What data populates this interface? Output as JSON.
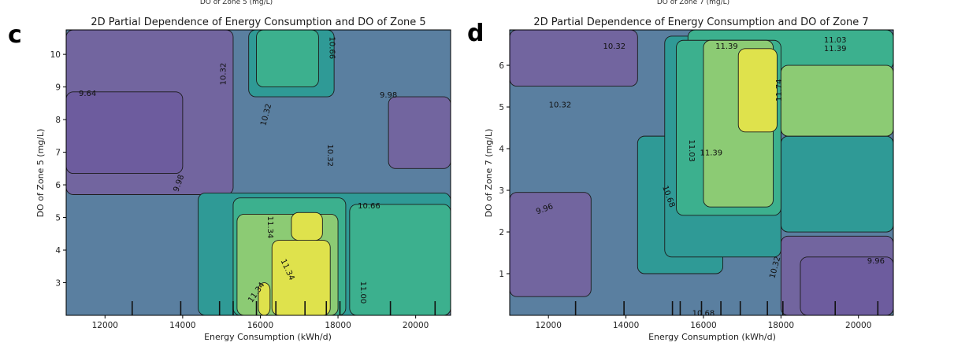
{
  "colors": {
    "viridis": [
      "#482878",
      "#3e4a89",
      "#31688e",
      "#26828e",
      "#1f9e89",
      "#35b779",
      "#6ece58",
      "#b5de2b",
      "#fde725"
    ],
    "level_fill": {
      "9.64": "#6d5c9e",
      "9.96": "#72659f",
      "9.98": "#72659f",
      "10.32": "#5a7fa0",
      "10.66": "#2f9a96",
      "11.00": "#3cb08e",
      "11.03": "#3cb08e",
      "11.34": "#8ccb74",
      "11.39": "#8ccb74",
      "11.74": "#dfe24c"
    }
  },
  "chart_data": [
    {
      "panel": "c",
      "type": "contour",
      "title": "2D Partial Dependence of Energy Consumption and DO of Zone 5",
      "top_clipped_text": "DO of Zone 5  (mg/L)",
      "xlabel": "Energy Consumption  (kWh/d)",
      "ylabel": "DO of Zone 5   (mg/L)",
      "xlim": [
        11000,
        20900
      ],
      "ylim": [
        2.0,
        10.75
      ],
      "xticks": [
        12000,
        14000,
        16000,
        18000,
        20000
      ],
      "yticks": [
        3,
        4,
        5,
        6,
        7,
        8,
        9,
        10
      ],
      "background_level": "10.32",
      "regions": [
        {
          "x0": 11000,
          "x1": 15300,
          "y0": 5.7,
          "y1": 10.75,
          "level": "9.98"
        },
        {
          "x0": 11000,
          "x1": 14000,
          "y0": 6.35,
          "y1": 8.85,
          "level": "9.64"
        },
        {
          "x0": 19300,
          "x1": 20900,
          "y0": 6.5,
          "y1": 8.7,
          "level": "9.98"
        },
        {
          "x0": 15700,
          "x1": 17900,
          "y0": 8.7,
          "y1": 10.75,
          "level": "10.66"
        },
        {
          "x0": 15900,
          "x1": 17500,
          "y0": 9.0,
          "y1": 10.75,
          "level": "11.00"
        },
        {
          "x0": 14400,
          "x1": 20900,
          "y0": 2.0,
          "y1": 5.75,
          "level": "10.66"
        },
        {
          "x0": 18300,
          "x1": 20900,
          "y0": 2.0,
          "y1": 5.4,
          "level": "11.00"
        },
        {
          "x0": 15300,
          "x1": 18200,
          "y0": 2.0,
          "y1": 5.6,
          "level": "11.00"
        },
        {
          "x0": 15400,
          "x1": 18000,
          "y0": 2.0,
          "y1": 5.1,
          "level": "11.34"
        },
        {
          "x0": 16300,
          "x1": 17800,
          "y0": 2.0,
          "y1": 4.3,
          "level": "11.74"
        },
        {
          "x0": 16800,
          "x1": 17600,
          "y0": 4.3,
          "y1": 5.15,
          "level": "11.74"
        },
        {
          "x0": 15950,
          "x1": 16250,
          "y0": 2.0,
          "y1": 3.0,
          "level": "11.74"
        }
      ],
      "contour_labels": [
        {
          "text": "9.64",
          "x": 11550,
          "y": 8.8,
          "rot": 0
        },
        {
          "text": "10.32",
          "x": 15050,
          "y": 9.4,
          "rot": -90
        },
        {
          "text": "10.66",
          "x": 17850,
          "y": 10.2,
          "rot": 90
        },
        {
          "text": "10.32",
          "x": 16150,
          "y": 8.15,
          "rot": -75
        },
        {
          "text": "9.98",
          "x": 19300,
          "y": 8.75,
          "rot": 0
        },
        {
          "text": "10.32",
          "x": 17800,
          "y": 6.9,
          "rot": 90
        },
        {
          "text": "9.98",
          "x": 13900,
          "y": 6.05,
          "rot": -70
        },
        {
          "text": "10.66",
          "x": 18800,
          "y": 5.35,
          "rot": 0
        },
        {
          "text": "11.34",
          "x": 16250,
          "y": 4.7,
          "rot": 90
        },
        {
          "text": "11.34",
          "x": 16700,
          "y": 3.4,
          "rot": 65
        },
        {
          "text": "11.34",
          "x": 15900,
          "y": 2.7,
          "rot": -55
        },
        {
          "text": "11.00",
          "x": 18650,
          "y": 2.7,
          "rot": 90
        }
      ],
      "rug_x": [
        12700,
        13950,
        14950,
        15300,
        15900,
        16400,
        17150,
        17700,
        18050,
        19350,
        20500
      ]
    },
    {
      "panel": "d",
      "type": "contour",
      "title": "2D Partial Dependence of Energy Consumption and DO of Zone 7",
      "top_clipped_text": "DO of Zone 7 (mg/L)",
      "xlabel": "Energy Consumption  (kWh/d)",
      "ylabel": "DO of Zone 7   (mg/L)",
      "xlim": [
        11000,
        20900
      ],
      "ylim": [
        0.0,
        6.85
      ],
      "xticks": [
        12000,
        14000,
        16000,
        18000,
        20000
      ],
      "yticks": [
        1,
        2,
        3,
        4,
        5,
        6
      ],
      "background_level": "10.32",
      "regions": [
        {
          "x0": 11000,
          "x1": 14300,
          "y0": 5.5,
          "y1": 6.85,
          "level": "9.96"
        },
        {
          "x0": 11000,
          "x1": 13100,
          "y0": 0.45,
          "y1": 2.95,
          "level": "9.96"
        },
        {
          "x0": 18000,
          "x1": 20900,
          "y0": 0.0,
          "y1": 1.9,
          "level": "9.96"
        },
        {
          "x0": 18500,
          "x1": 20900,
          "y0": 0.0,
          "y1": 1.4,
          "level": "9.64"
        },
        {
          "x0": 14300,
          "x1": 16500,
          "y0": 1.0,
          "y1": 4.3,
          "level": "10.66"
        },
        {
          "x0": 15000,
          "x1": 18000,
          "y0": 1.4,
          "y1": 6.7,
          "level": "10.66"
        },
        {
          "x0": 18000,
          "x1": 20900,
          "y0": 2.0,
          "y1": 4.3,
          "level": "10.66"
        },
        {
          "x0": 15600,
          "x1": 20900,
          "y0": 5.9,
          "y1": 6.85,
          "level": "11.03"
        },
        {
          "x0": 15300,
          "x1": 18000,
          "y0": 2.4,
          "y1": 6.6,
          "level": "11.03"
        },
        {
          "x0": 16000,
          "x1": 17800,
          "y0": 2.6,
          "y1": 6.6,
          "level": "11.39"
        },
        {
          "x0": 18000,
          "x1": 20900,
          "y0": 4.3,
          "y1": 6.0,
          "level": "11.39"
        },
        {
          "x0": 16900,
          "x1": 17900,
          "y0": 4.4,
          "y1": 6.4,
          "level": "11.74"
        }
      ],
      "contour_labels": [
        {
          "text": "10.32",
          "x": 13700,
          "y": 6.45,
          "rot": 0
        },
        {
          "text": "11.39",
          "x": 16600,
          "y": 6.45,
          "rot": 0
        },
        {
          "text": "11.03",
          "x": 19400,
          "y": 6.6,
          "rot": 0
        },
        {
          "text": "11.39",
          "x": 19400,
          "y": 6.4,
          "rot": 0
        },
        {
          "text": "10.32",
          "x": 12300,
          "y": 5.05,
          "rot": 0
        },
        {
          "text": "11.74",
          "x": 17950,
          "y": 5.4,
          "rot": -90
        },
        {
          "text": "11.03",
          "x": 15700,
          "y": 3.95,
          "rot": 90
        },
        {
          "text": "11.39",
          "x": 16200,
          "y": 3.9,
          "rot": 0
        },
        {
          "text": "10.68",
          "x": 15100,
          "y": 2.85,
          "rot": 70
        },
        {
          "text": "9.96",
          "x": 11900,
          "y": 2.55,
          "rot": -20
        },
        {
          "text": "10.32",
          "x": 17850,
          "y": 1.15,
          "rot": -75
        },
        {
          "text": "9.96",
          "x": 20450,
          "y": 1.3,
          "rot": 0
        },
        {
          "text": "10.68",
          "x": 16000,
          "y": 0.05,
          "rot": 0
        }
      ],
      "rug_x": [
        12700,
        13950,
        15200,
        15400,
        15950,
        16450,
        16950,
        17650,
        18050,
        19400,
        20500
      ]
    }
  ]
}
